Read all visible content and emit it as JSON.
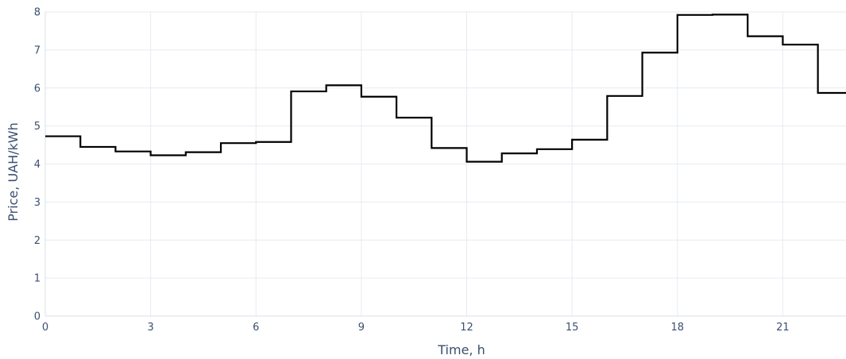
{
  "chart_data": {
    "type": "line",
    "line_shape": "step-post",
    "title": "",
    "xlabel": "Time, h",
    "ylabel": "Price, UAH/kWh",
    "xlim": [
      0,
      22.8
    ],
    "ylim": [
      0,
      8
    ],
    "x_ticks": [
      0,
      3,
      6,
      9,
      12,
      15,
      18,
      21
    ],
    "y_ticks": [
      0,
      1,
      2,
      3,
      4,
      5,
      6,
      7,
      8
    ],
    "grid": true,
    "legend": "none",
    "series": [
      {
        "color": "#000000",
        "x": [
          0,
          1,
          2,
          3,
          4,
          5,
          6,
          7,
          8,
          9,
          10,
          11,
          12,
          13,
          14,
          15,
          16,
          17,
          18,
          19,
          20,
          21,
          22
        ],
        "y": [
          4.73,
          4.45,
          4.33,
          4.23,
          4.31,
          4.55,
          4.58,
          5.91,
          6.07,
          5.77,
          5.22,
          4.42,
          4.06,
          4.28,
          4.39,
          4.64,
          5.79,
          6.93,
          7.92,
          7.93,
          7.36,
          7.14,
          5.87
        ]
      }
    ]
  }
}
